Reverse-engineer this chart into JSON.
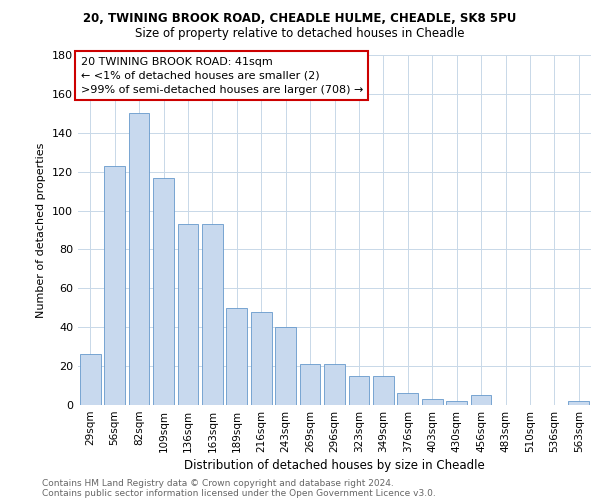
{
  "title_line1": "20, TWINING BROOK ROAD, CHEADLE HULME, CHEADLE, SK8 5PU",
  "title_line2": "Size of property relative to detached houses in Cheadle",
  "xlabel": "Distribution of detached houses by size in Cheadle",
  "ylabel": "Number of detached properties",
  "categories": [
    "29sqm",
    "56sqm",
    "82sqm",
    "109sqm",
    "136sqm",
    "163sqm",
    "189sqm",
    "216sqm",
    "243sqm",
    "269sqm",
    "296sqm",
    "323sqm",
    "349sqm",
    "376sqm",
    "403sqm",
    "430sqm",
    "456sqm",
    "483sqm",
    "510sqm",
    "536sqm",
    "563sqm"
  ],
  "values": [
    26,
    123,
    150,
    117,
    93,
    93,
    50,
    48,
    40,
    21,
    21,
    15,
    15,
    6,
    3,
    2,
    5,
    0,
    0,
    0,
    2
  ],
  "bar_color": "#c8d9ee",
  "bar_edge_color": "#6699cc",
  "annotation_box_text": "20 TWINING BROOK ROAD: 41sqm\n← <1% of detached houses are smaller (2)\n>99% of semi-detached houses are larger (708) →",
  "annotation_box_color": "#ffffff",
  "annotation_box_edge_color": "#cc0000",
  "ylim": [
    0,
    180
  ],
  "yticks": [
    0,
    20,
    40,
    60,
    80,
    100,
    120,
    140,
    160,
    180
  ],
  "footnote_line1": "Contains HM Land Registry data © Crown copyright and database right 2024.",
  "footnote_line2": "Contains public sector information licensed under the Open Government Licence v3.0.",
  "background_color": "#ffffff",
  "grid_color": "#c8d8e8",
  "title_fontsize": 8.5,
  "subtitle_fontsize": 8.5,
  "ylabel_fontsize": 8,
  "xlabel_fontsize": 8.5,
  "tick_fontsize": 7.5,
  "ytick_fontsize": 8,
  "footnote_fontsize": 6.5,
  "ann_fontsize": 8
}
